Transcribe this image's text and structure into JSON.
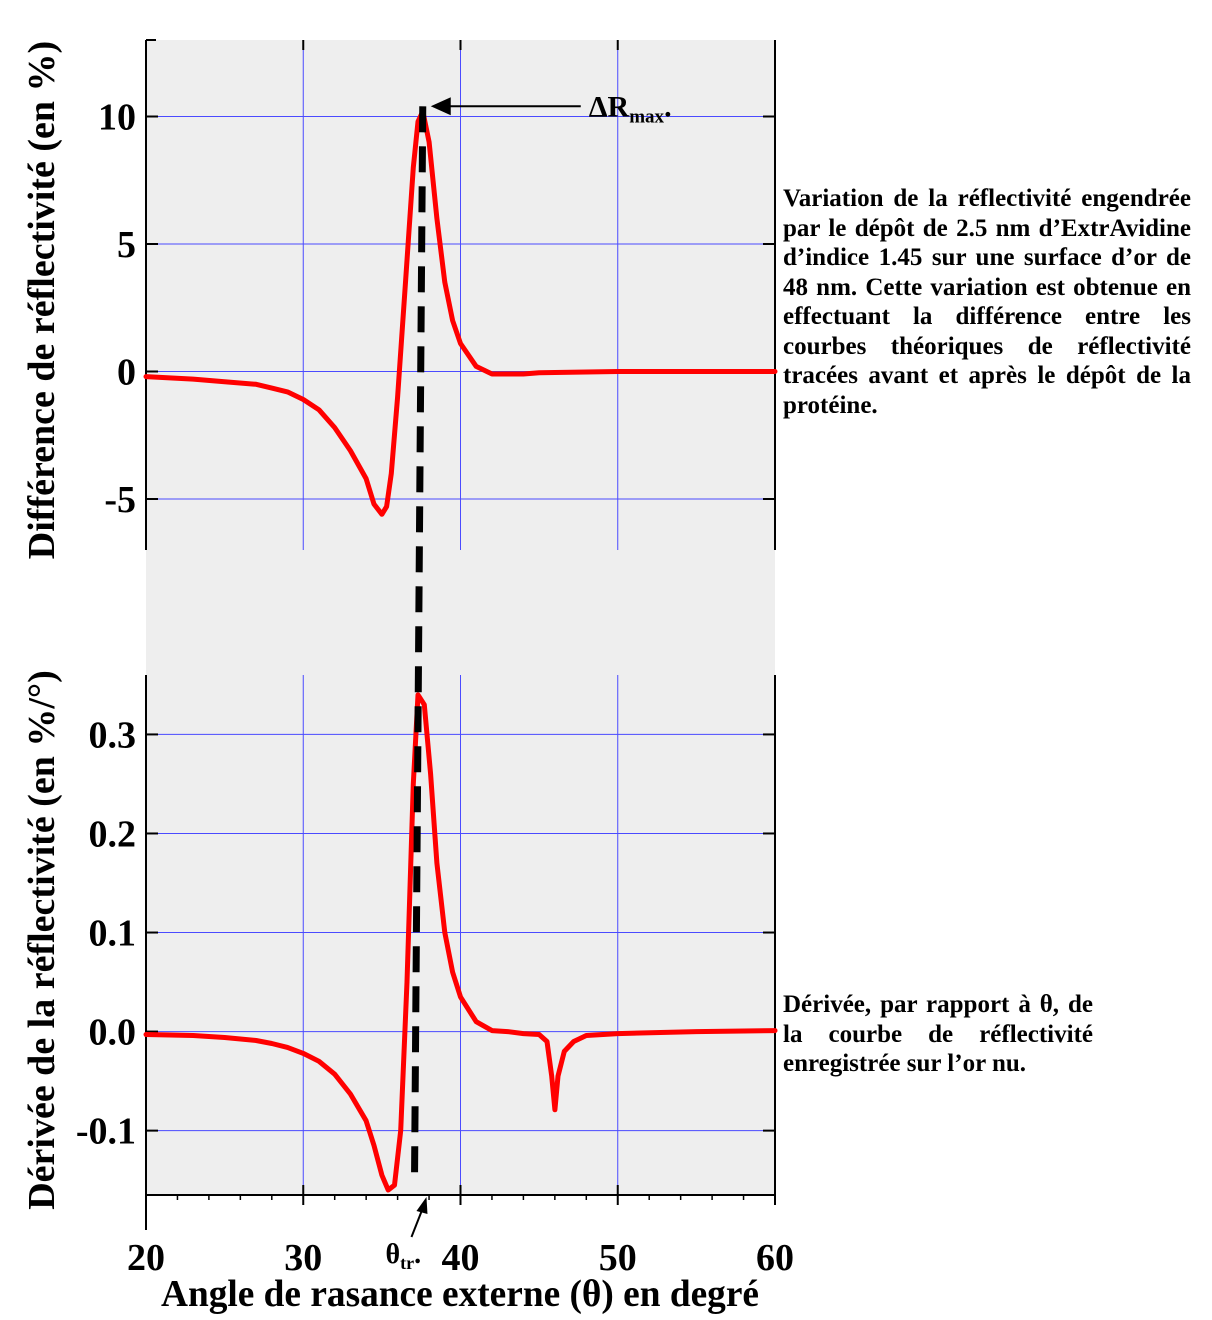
{
  "chart_data": [
    {
      "type": "line",
      "ylabel": "Différence de réflectivité (en %)",
      "xlim": [
        20,
        60
      ],
      "ylim": [
        -7,
        13
      ],
      "yticks": [
        "-5",
        "0",
        "5",
        "10"
      ],
      "ytick_values": [
        -5,
        0,
        5,
        10
      ],
      "xticks": [
        20,
        30,
        40,
        50,
        60
      ],
      "grid": true,
      "series": [
        {
          "color": "#ff0000",
          "x": [
            20,
            23,
            25,
            27,
            28,
            29,
            30,
            31,
            32,
            33,
            34,
            34.5,
            35,
            35.3,
            35.6,
            36,
            36.5,
            37,
            37.3,
            37.6,
            38,
            38.5,
            39,
            39.5,
            40,
            41,
            42,
            43,
            44,
            45,
            50,
            55,
            60
          ],
          "y": [
            -0.2,
            -0.3,
            -0.4,
            -0.5,
            -0.65,
            -0.8,
            -1.1,
            -1.5,
            -2.2,
            -3.1,
            -4.2,
            -5.2,
            -5.6,
            -5.3,
            -4,
            -1,
            3.5,
            8,
            9.8,
            10.2,
            9,
            6,
            3.5,
            2,
            1.1,
            0.2,
            -0.1,
            -0.1,
            -0.1,
            -0.05,
            0,
            0,
            0
          ]
        }
      ],
      "annotations": [
        {
          "text": "ΔR",
          "subscript": "max",
          "suffix": ".",
          "x": 37.6,
          "y": 10.4
        }
      ]
    },
    {
      "type": "line",
      "xlabel": "Angle de rasance externe (θ) en degré",
      "ylabel": "Dérivée de la réflectivité (en %/°)",
      "xlim": [
        20,
        60
      ],
      "ylim": [
        -0.165,
        0.36
      ],
      "yticks": [
        "-0.1",
        "0.0",
        "0.1",
        "0.2",
        "0.3"
      ],
      "ytick_values": [
        -0.1,
        0,
        0.1,
        0.2,
        0.3
      ],
      "xticks": [
        20,
        30,
        40,
        50,
        60
      ],
      "grid": true,
      "series": [
        {
          "color": "#ff0000",
          "x": [
            20,
            23,
            25,
            27,
            28,
            29,
            30,
            31,
            32,
            33,
            34,
            34.5,
            35,
            35.4,
            35.8,
            36.2,
            36.6,
            37,
            37.3,
            37.7,
            38.1,
            38.5,
            39,
            39.5,
            40,
            41,
            42,
            43,
            44,
            45,
            45.5,
            45.8,
            46,
            46.2,
            46.6,
            47.2,
            48,
            50,
            55,
            60
          ],
          "y": [
            -0.003,
            -0.004,
            -0.006,
            -0.009,
            -0.012,
            -0.016,
            -0.022,
            -0.03,
            -0.043,
            -0.063,
            -0.09,
            -0.115,
            -0.145,
            -0.16,
            -0.155,
            -0.1,
            0.05,
            0.25,
            0.34,
            0.33,
            0.26,
            0.17,
            0.1,
            0.06,
            0.035,
            0.01,
            0.001,
            0,
            -0.002,
            -0.003,
            -0.01,
            -0.045,
            -0.079,
            -0.045,
            -0.02,
            -0.01,
            -0.004,
            -0.002,
            0,
            0.001
          ]
        }
      ],
      "annotations": [
        {
          "text": "θ",
          "subscript": "tr",
          "suffix": ".",
          "x": 37.2
        }
      ]
    }
  ],
  "captions": {
    "top": "Variation de la réflectivité engendrée par le dépôt de 2.5 nm d’ExtrAvidine d’indice 1.45 sur une surface d’or de 48 nm. Cette variation est obtenue en effectuant la différence entre les courbes théoriques de réflectivité tracées avant et après le dépôt de la protéine.",
    "bottom": "Dérivée, par rapport à θ, de la courbe de réflectivité enregistrée sur l’or nu."
  },
  "transition_line": {
    "x": 37.2
  }
}
